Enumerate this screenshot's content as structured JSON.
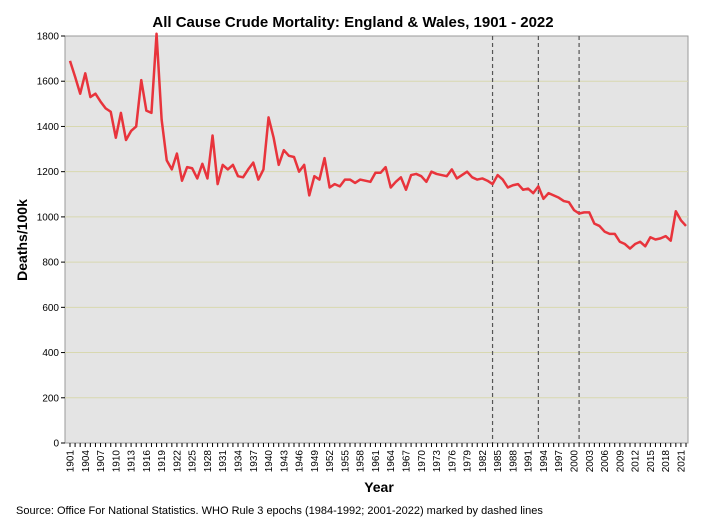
{
  "chart_data": {
    "type": "line",
    "title": "All Cause Crude Mortality: England & Wales, 1901 - 2022",
    "xlabel": "Year",
    "ylabel": "Deaths/100k",
    "xlim": [
      1901,
      2022
    ],
    "ylim": [
      0,
      1800
    ],
    "yticks": [
      0,
      200,
      400,
      600,
      800,
      1000,
      1200,
      1400,
      1600,
      1800
    ],
    "xtick_labels": [
      "1901",
      "1904",
      "1907",
      "1910",
      "1913",
      "1916",
      "1919",
      "1922",
      "1925",
      "1928",
      "1931",
      "1934",
      "1937",
      "1940",
      "1943",
      "1946",
      "1949",
      "1952",
      "1955",
      "1958",
      "1961",
      "1964",
      "1967",
      "1970",
      "1973",
      "1976",
      "1979",
      "1982",
      "1985",
      "1988",
      "1991",
      "1994",
      "1997",
      "2000",
      "2003",
      "2006",
      "2009",
      "2012",
      "2015",
      "2018",
      "2021"
    ],
    "grid": true,
    "series_color": "#e8343c",
    "grid_color": "#d8d8b0",
    "plot_bg": "#e4e4e4",
    "epoch_markers": [
      1984,
      1993,
      2001
    ],
    "source_note": "Source: Office For National Statistics. WHO Rule 3 epochs (1984-1992; 2001-2022) marked by dashed lines",
    "series": [
      {
        "name": "All Cause Crude Mortality",
        "x": [
          1901,
          1902,
          1903,
          1904,
          1905,
          1906,
          1907,
          1908,
          1909,
          1910,
          1911,
          1912,
          1913,
          1914,
          1915,
          1916,
          1917,
          1918,
          1919,
          1920,
          1921,
          1922,
          1923,
          1924,
          1925,
          1926,
          1927,
          1928,
          1929,
          1930,
          1931,
          1932,
          1933,
          1934,
          1935,
          1936,
          1937,
          1938,
          1939,
          1940,
          1941,
          1942,
          1943,
          1944,
          1945,
          1946,
          1947,
          1948,
          1949,
          1950,
          1951,
          1952,
          1953,
          1954,
          1955,
          1956,
          1957,
          1958,
          1959,
          1960,
          1961,
          1962,
          1963,
          1964,
          1965,
          1966,
          1967,
          1968,
          1969,
          1970,
          1971,
          1972,
          1973,
          1974,
          1975,
          1976,
          1977,
          1978,
          1979,
          1980,
          1981,
          1982,
          1983,
          1984,
          1985,
          1986,
          1987,
          1988,
          1989,
          1990,
          1991,
          1992,
          1993,
          1994,
          1995,
          1996,
          1997,
          1998,
          1999,
          2000,
          2001,
          2002,
          2003,
          2004,
          2005,
          2006,
          2007,
          2008,
          2009,
          2010,
          2011,
          2012,
          2013,
          2014,
          2015,
          2016,
          2017,
          2018,
          2019,
          2020,
          2021,
          2022
        ],
        "values": [
          1690,
          1620,
          1545,
          1635,
          1530,
          1545,
          1510,
          1480,
          1465,
          1350,
          1460,
          1340,
          1380,
          1400,
          1605,
          1470,
          1460,
          1810,
          1430,
          1250,
          1210,
          1280,
          1160,
          1220,
          1215,
          1170,
          1235,
          1170,
          1360,
          1145,
          1230,
          1210,
          1230,
          1180,
          1175,
          1210,
          1240,
          1165,
          1210,
          1440,
          1350,
          1230,
          1295,
          1270,
          1265,
          1200,
          1230,
          1095,
          1180,
          1165,
          1260,
          1130,
          1145,
          1135,
          1165,
          1165,
          1150,
          1165,
          1160,
          1155,
          1195,
          1195,
          1220,
          1130,
          1155,
          1175,
          1120,
          1185,
          1190,
          1180,
          1155,
          1200,
          1190,
          1185,
          1180,
          1210,
          1170,
          1185,
          1200,
          1175,
          1165,
          1170,
          1160,
          1145,
          1185,
          1165,
          1130,
          1140,
          1145,
          1120,
          1125,
          1105,
          1135,
          1080,
          1105,
          1095,
          1085,
          1070,
          1065,
          1030,
          1015,
          1020,
          1020,
          970,
          960,
          935,
          925,
          925,
          890,
          880,
          860,
          880,
          890,
          870,
          910,
          900,
          905,
          915,
          895,
          1025,
          985,
          960
        ]
      }
    ]
  }
}
